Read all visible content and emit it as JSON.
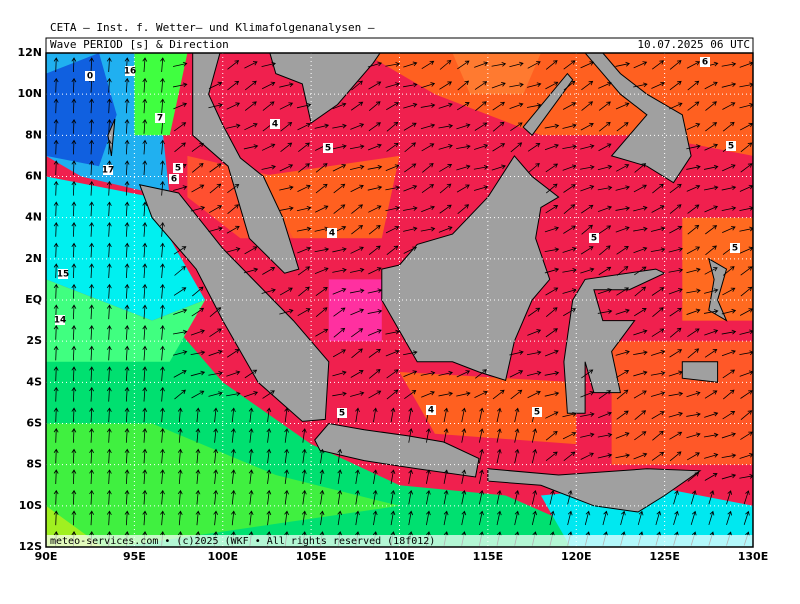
{
  "header": {
    "title": "CETA – Inst. f. Wetter– und Klimafolgenanalysen –"
  },
  "map": {
    "panel_label": "Wave PERIOD [s] & Direction",
    "date": "10.07.2025 06 UTC",
    "lat_labels": [
      "12N",
      "10N",
      "8N",
      "6N",
      "4N",
      "2N",
      "EQ",
      "2S",
      "4S",
      "6S",
      "8S",
      "10S",
      "12S"
    ],
    "lon_labels": [
      "90E",
      "95E",
      "100E",
      "105E",
      "110E",
      "115E",
      "120E",
      "125E",
      "130E"
    ],
    "contour_labels": [
      "0",
      "16",
      "7",
      "17",
      "5",
      "6",
      "4",
      "5",
      "4",
      "5",
      "5",
      "6",
      "5",
      "15",
      "14",
      "5",
      "4",
      "5"
    ],
    "footer": "meteo-services.com • (c)2025 (WKF • All rights reserved (18f012)"
  }
}
